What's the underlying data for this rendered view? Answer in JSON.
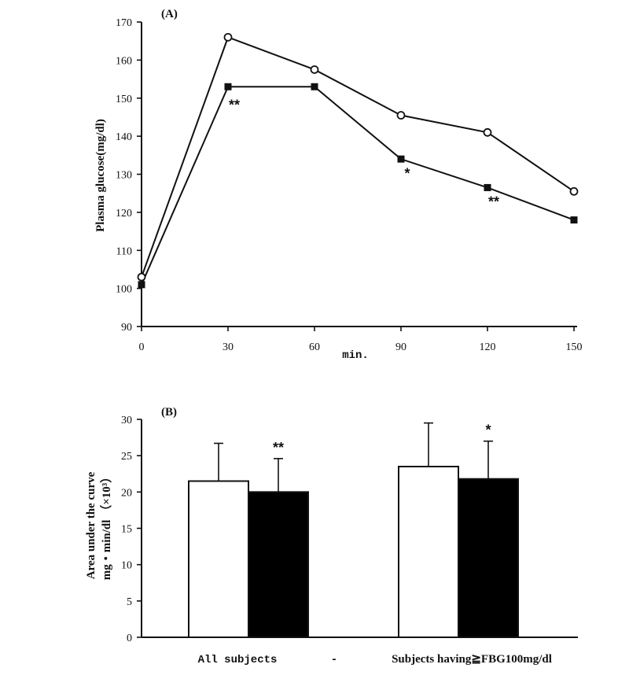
{
  "chart_data": [
    {
      "type": "line",
      "panel_label": "(A)",
      "xlabel": "min.",
      "ylabel": "Plasma glucose(mg/dl)",
      "x": [
        0,
        30,
        60,
        90,
        120,
        150
      ],
      "x_ticks": [
        "0",
        "30",
        "60",
        "90",
        "120",
        "150"
      ],
      "y_ticks": [
        "90",
        "100",
        "110",
        "120",
        "130",
        "140",
        "150",
        "160",
        "170"
      ],
      "xlim": [
        0,
        150
      ],
      "ylim": [
        90,
        170
      ],
      "series": [
        {
          "marker": "open-circle",
          "values": [
            103,
            166,
            157.5,
            145.5,
            141,
            125.5
          ]
        },
        {
          "marker": "filled-square",
          "values": [
            101,
            153,
            153,
            134,
            126.5,
            118
          ]
        }
      ],
      "annotations": [
        {
          "x": 30,
          "y": 147,
          "text": "**"
        },
        {
          "x": 90,
          "y": 129,
          "text": "*"
        },
        {
          "x": 120,
          "y": 121.5,
          "text": "**"
        }
      ]
    },
    {
      "type": "bar",
      "panel_label": "(B)",
      "ylabel_line1": "Area under the curve",
      "ylabel_line2": "mg・min/dl （×10³）",
      "categories": [
        "All subjects",
        "Subjects having≧FBG100mg/dl"
      ],
      "separator": "-",
      "y_ticks": [
        "0",
        "5",
        "10",
        "15",
        "20",
        "25",
        "30"
      ],
      "ylim": [
        0,
        30
      ],
      "series": [
        {
          "fill": "#ffffff",
          "values": [
            21.5,
            23.5
          ],
          "error": [
            5.2,
            6
          ]
        },
        {
          "fill": "#000000",
          "values": [
            20,
            21.8
          ],
          "error": [
            4.6,
            5.2
          ]
        }
      ],
      "annotations": [
        {
          "category": 0,
          "series": 1,
          "text": "**"
        },
        {
          "category": 1,
          "series": 1,
          "text": "*"
        }
      ]
    }
  ]
}
